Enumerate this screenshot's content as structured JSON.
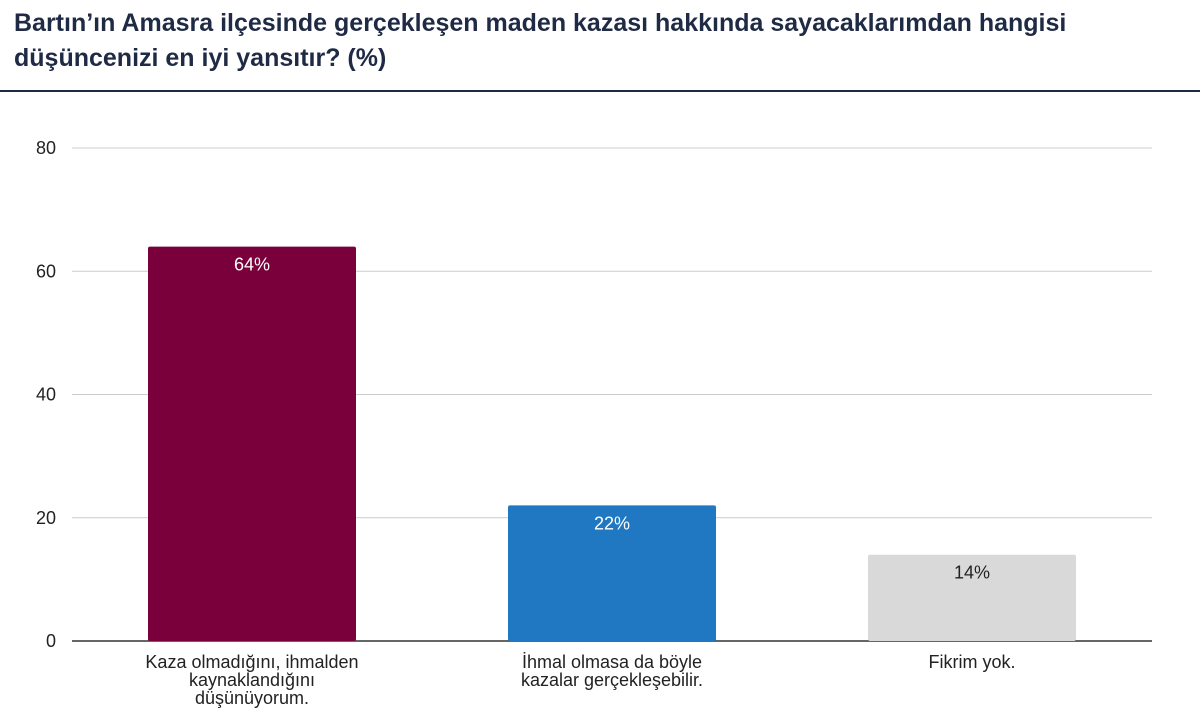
{
  "header": {
    "title": "Bartın’ın Amasra ilçesinde gerçekleşen maden kazası hakkında sayacaklarımdan hangisi düşüncenizi en iyi yansıtır?",
    "title_suffix": "(%)"
  },
  "colors": {
    "grid": "#cccccc",
    "axis": "#333333",
    "title": "#1f2a44"
  },
  "chart_data": {
    "type": "bar",
    "categories": [
      [
        "Kaza olmadığını, ihmalden",
        "kaynaklandığını",
        "düşünüyorum."
      ],
      [
        "İhmal olmasa da böyle",
        "kazalar gerçekleşebilir."
      ],
      [
        "Fikrim yok."
      ]
    ],
    "values": [
      64,
      22,
      14
    ],
    "data_labels": [
      "64%",
      "22%",
      "14%"
    ],
    "bar_colors": [
      "#7a003c",
      "#1f78c1",
      "#d9d9d9"
    ],
    "label_colors": [
      "#ffffff",
      "#ffffff",
      "#222222"
    ],
    "ylim": [
      0,
      80
    ],
    "yticks": [
      0,
      20,
      40,
      60,
      80
    ],
    "grid": true,
    "legend": "none"
  }
}
